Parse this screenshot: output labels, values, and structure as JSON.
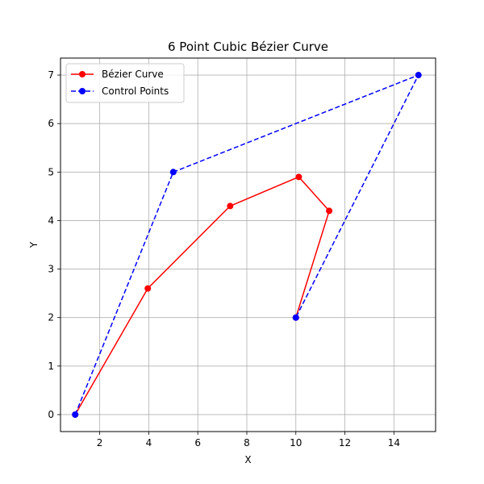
{
  "chart_data": {
    "type": "line",
    "title": "6 Point Cubic Bézier Curve",
    "xlabel": "X",
    "ylabel": "Y",
    "xlim": [
      0.4,
      15.7
    ],
    "ylim": [
      -0.35,
      7.35
    ],
    "xticks": [
      2,
      4,
      6,
      8,
      10,
      12,
      14
    ],
    "yticks": [
      0,
      1,
      2,
      3,
      4,
      5,
      6,
      7
    ],
    "grid": true,
    "legend_position": "upper-left",
    "series": [
      {
        "name": "Bézier Curve",
        "color": "#ff0000",
        "line_style": "solid",
        "marker": "circle",
        "x": [
          1.0,
          3.96,
          7.32,
          10.12,
          11.36,
          10.0
        ],
        "y": [
          0.0,
          2.6,
          4.3,
          4.9,
          4.2,
          2.0
        ]
      },
      {
        "name": "Control Points",
        "color": "#0000ff",
        "line_style": "dashed",
        "marker": "circle",
        "x": [
          1,
          5,
          15,
          10
        ],
        "y": [
          0,
          5,
          7,
          2
        ]
      }
    ]
  }
}
